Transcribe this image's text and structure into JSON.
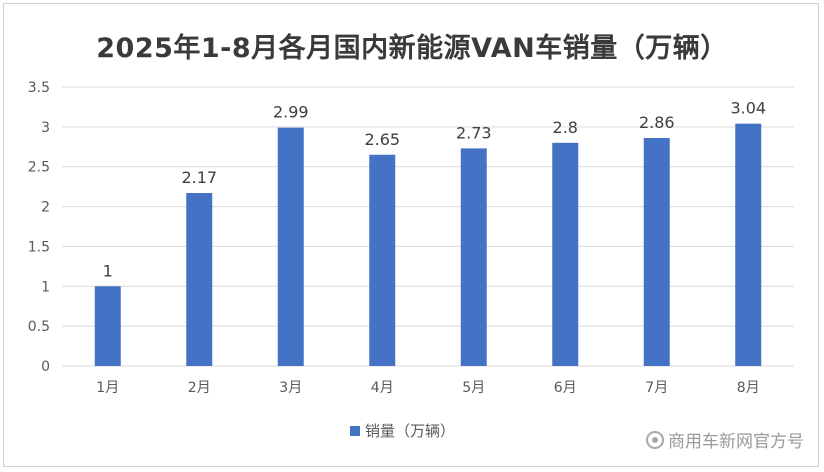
{
  "chart_data": {
    "type": "bar",
    "title": "2025年1-8月各月国内新能源VAN车销量（万辆）",
    "categories": [
      "1月",
      "2月",
      "3月",
      "4月",
      "5月",
      "6月",
      "7月",
      "8月"
    ],
    "series": [
      {
        "name": "销量（万辆）",
        "values": [
          1,
          2.17,
          2.99,
          2.65,
          2.73,
          2.8,
          2.86,
          3.04
        ],
        "labels": [
          "1",
          "2.17",
          "2.99",
          "2.65",
          "2.73",
          "2.8",
          "2.86",
          "3.04"
        ],
        "color": "#4472C4"
      }
    ],
    "ylim": [
      0,
      3.5
    ],
    "yticks": [
      "0",
      "0.5",
      "1",
      "1.5",
      "2",
      "2.5",
      "3",
      "3.5"
    ],
    "grid": true,
    "legend_position": "bottom"
  },
  "watermark": "商用车新网官方号",
  "colors": {
    "bar": "#4472C4",
    "grid": "#d9d9d9",
    "text": "#595959"
  }
}
